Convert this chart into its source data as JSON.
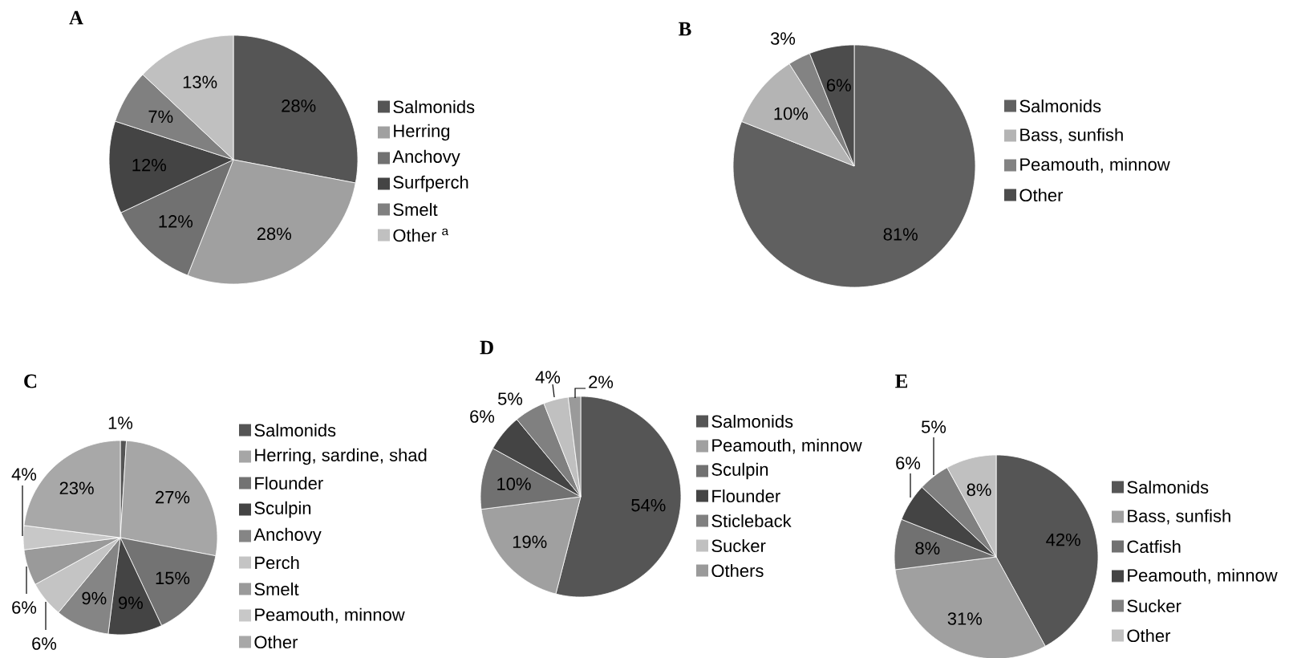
{
  "chart_data": [
    {
      "type": "pie",
      "title": "A",
      "categories": [
        "Salmonids",
        "Herring",
        "Anchovy",
        "Surfperch",
        "Smelt",
        "Other $^{a}$"
      ],
      "values": [
        28,
        28,
        12,
        12,
        7,
        13
      ],
      "value_labels": [
        "28%",
        "28%",
        "12%",
        "12%",
        "7%",
        "13%"
      ],
      "colors": [
        "#555555",
        "#a0a0a0",
        "#717171",
        "#444444",
        "#808080",
        "#c0c0c0"
      ],
      "legend": "right"
    },
    {
      "type": "pie",
      "title": "B",
      "categories": [
        "Salmonids",
        "Bass, sunfish",
        "Peamouth, minnow",
        "Other"
      ],
      "values": [
        81,
        10,
        3,
        6
      ],
      "value_labels": [
        "81%",
        "10%",
        "3%",
        "6%"
      ],
      "colors": [
        "#606060",
        "#b4b4b4",
        "#838383",
        "#4c4c4c"
      ],
      "legend": "right"
    },
    {
      "type": "pie",
      "title": "C",
      "categories": [
        "Salmonids",
        "Herring, sardine, shad",
        "Flounder",
        "Sculpin",
        "Anchovy",
        "Perch",
        "Smelt",
        "Peamouth, minnow",
        "Other"
      ],
      "values": [
        1,
        27,
        15,
        9,
        9,
        6,
        6,
        4,
        23
      ],
      "value_labels": [
        "1%",
        "27%",
        "15%",
        "9%",
        "9%",
        "6%",
        "6%",
        "4%",
        "23%"
      ],
      "colors": [
        "#555555",
        "#a6a6a6",
        "#737373",
        "#444444",
        "#858585",
        "#c4c4c4",
        "#9a9a9a",
        "#c8c8c8",
        "#a8a8a8"
      ],
      "legend": "right"
    },
    {
      "type": "pie",
      "title": "D",
      "categories": [
        "Salmonids",
        "Peamouth, minnow",
        "Sculpin",
        "Flounder",
        "Sticleback",
        "Sucker",
        "Others"
      ],
      "values": [
        54,
        19,
        10,
        6,
        5,
        4,
        2
      ],
      "value_labels": [
        "54%",
        "19%",
        "10%",
        "6%",
        "5%",
        "4%",
        "2%"
      ],
      "colors": [
        "#555555",
        "#a0a0a0",
        "#717171",
        "#444444",
        "#808080",
        "#c0c0c0",
        "#9a9a9a"
      ],
      "legend": "right"
    },
    {
      "type": "pie",
      "title": "E",
      "categories": [
        "Salmonids",
        "Bass, sunfish",
        "Catfish",
        "Peamouth, minnow",
        "Sucker",
        "Other"
      ],
      "values": [
        42,
        31,
        8,
        6,
        5,
        8
      ],
      "value_labels": [
        "42%",
        "31%",
        "8%",
        "6%",
        "5%",
        "8%"
      ],
      "colors": [
        "#555555",
        "#a0a0a0",
        "#717171",
        "#444444",
        "#808080",
        "#c0c0c0"
      ],
      "legend": "right"
    }
  ]
}
